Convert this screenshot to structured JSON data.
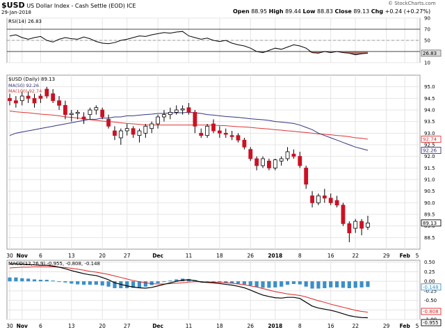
{
  "header": {
    "symbol": "$USD",
    "name": "US Dollar Index - Cash Settle (EOD) ICE",
    "date": "29-Jan-2018",
    "open_label": "Open",
    "open": "88.95",
    "high_label": "High",
    "high": "89.44",
    "low_label": "Low",
    "low": "88.83",
    "close_label": "Close",
    "close": "89.13",
    "chg_label": "Chg",
    "chg": "+0.24 (+0.27%)",
    "credit": "© StockCharts.com"
  },
  "colors": {
    "up": "#ffffff",
    "down": "#cc1122",
    "ma50": "#33337f",
    "ma100": "#dd3333",
    "macd": "#000000",
    "signal": "#dd2222",
    "hist": "#3b8fc7",
    "rsi_fill": "#a05a50"
  },
  "chart_data": [
    {
      "type": "line",
      "panel": "RSI",
      "title": "RSI(14) 26.83",
      "last_label": "26.83",
      "ylim": [
        10,
        90
      ],
      "ticks": [
        10,
        30,
        50,
        70,
        90
      ],
      "reference_lines": [
        30,
        50,
        70
      ],
      "values": [
        58,
        60,
        55,
        52,
        55,
        57,
        50,
        47,
        52,
        55,
        53,
        52,
        56,
        53,
        48,
        45,
        44,
        46,
        50,
        52,
        55,
        58,
        57,
        60,
        62,
        64,
        63,
        65,
        66,
        58,
        55,
        52,
        54,
        50,
        48,
        50,
        45,
        42,
        40,
        36,
        30,
        28,
        32,
        36,
        34,
        38,
        42,
        40,
        36,
        28,
        27,
        30,
        28,
        30,
        28,
        27,
        24,
        26,
        27
      ]
    },
    {
      "type": "candlestick",
      "panel": "Price",
      "title": "$USD (Daily) 89.13",
      "legend": [
        {
          "name": "MA(50) 92.26",
          "color": "#33337f"
        },
        {
          "name": "MA(100) 92.74",
          "color": "#dd3333"
        }
      ],
      "ylim": [
        88.0,
        95.5
      ],
      "ticks": [
        88.5,
        89.0,
        89.5,
        90.0,
        90.5,
        91.0,
        91.5,
        92.0,
        92.5,
        93.0,
        93.5,
        94.0,
        94.5,
        95.0
      ],
      "last_labels": {
        "ma100": "92.74",
        "ma50": "92.26",
        "close": "89.13"
      },
      "ohlc": [
        [
          94.5,
          94.7,
          94.2,
          94.4
        ],
        [
          94.4,
          94.6,
          94.1,
          94.3
        ],
        [
          94.4,
          94.8,
          94.2,
          94.6
        ],
        [
          94.6,
          94.8,
          94.3,
          94.5
        ],
        [
          94.5,
          94.7,
          94.1,
          94.3
        ],
        [
          94.6,
          94.7,
          94.3,
          94.5
        ],
        [
          94.9,
          95.0,
          94.5,
          94.6
        ],
        [
          94.7,
          94.9,
          94.3,
          94.4
        ],
        [
          94.4,
          94.6,
          94.0,
          94.2
        ],
        [
          94.2,
          94.4,
          93.6,
          93.8
        ],
        [
          93.8,
          94.0,
          93.5,
          93.85
        ],
        [
          93.85,
          94.0,
          93.6,
          93.9
        ],
        [
          93.7,
          93.9,
          93.4,
          93.6
        ],
        [
          93.8,
          94.1,
          93.6,
          94.0
        ],
        [
          94.0,
          94.2,
          93.8,
          94.1
        ],
        [
          94.0,
          94.1,
          93.6,
          93.7
        ],
        [
          93.6,
          93.8,
          93.2,
          93.3
        ],
        [
          93.1,
          93.3,
          92.7,
          92.9
        ],
        [
          92.8,
          93.2,
          92.5,
          93.1
        ],
        [
          93.1,
          93.4,
          92.9,
          93.2
        ],
        [
          93.2,
          93.3,
          92.8,
          92.95
        ],
        [
          92.9,
          93.2,
          92.6,
          93.1
        ],
        [
          93.0,
          93.4,
          92.8,
          93.3
        ],
        [
          93.2,
          93.5,
          93.0,
          93.4
        ],
        [
          93.4,
          93.8,
          93.2,
          93.7
        ],
        [
          93.7,
          94.0,
          93.5,
          93.8
        ],
        [
          93.8,
          94.1,
          93.6,
          93.9
        ],
        [
          93.9,
          94.2,
          93.8,
          94.0
        ],
        [
          94.0,
          94.2,
          93.8,
          94.05
        ],
        [
          94.1,
          94.3,
          93.8,
          93.9
        ],
        [
          93.9,
          94.0,
          93.0,
          93.3
        ],
        [
          93.0,
          93.2,
          92.8,
          92.9
        ],
        [
          92.9,
          93.4,
          92.8,
          93.3
        ],
        [
          93.4,
          93.6,
          93.0,
          93.1
        ],
        [
          93.1,
          93.3,
          92.8,
          93.0
        ],
        [
          93.0,
          93.2,
          92.8,
          92.95
        ],
        [
          92.9,
          93.1,
          92.7,
          92.85
        ],
        [
          92.9,
          93.0,
          92.6,
          92.7
        ],
        [
          92.7,
          92.8,
          92.3,
          92.4
        ],
        [
          92.3,
          92.4,
          91.8,
          91.9
        ],
        [
          91.9,
          92.0,
          91.4,
          91.6
        ],
        [
          91.6,
          92.0,
          91.5,
          91.9
        ],
        [
          91.8,
          91.9,
          91.4,
          91.5
        ],
        [
          91.5,
          91.9,
          91.4,
          91.85
        ],
        [
          91.8,
          92.0,
          91.6,
          91.9
        ],
        [
          91.9,
          92.4,
          91.8,
          92.2
        ],
        [
          92.1,
          92.3,
          91.9,
          92.0
        ],
        [
          92.0,
          92.2,
          91.5,
          91.6
        ],
        [
          91.5,
          91.6,
          90.6,
          90.8
        ],
        [
          90.3,
          90.5,
          89.8,
          90.0
        ],
        [
          90.0,
          90.4,
          89.9,
          90.3
        ],
        [
          90.3,
          90.6,
          90.0,
          90.2
        ],
        [
          90.2,
          90.4,
          89.9,
          90.0
        ],
        [
          90.1,
          90.3,
          89.8,
          89.9
        ],
        [
          89.9,
          90.0,
          89.0,
          89.1
        ],
        [
          89.1,
          89.2,
          88.3,
          88.7
        ],
        [
          88.9,
          89.3,
          88.7,
          89.2
        ],
        [
          89.2,
          89.3,
          88.6,
          88.9
        ],
        [
          88.95,
          89.44,
          88.83,
          89.13
        ]
      ],
      "ma50": [
        92.9,
        93.0,
        93.05,
        93.1,
        93.15,
        93.2,
        93.25,
        93.3,
        93.35,
        93.4,
        93.45,
        93.5,
        93.55,
        93.6,
        93.6,
        93.65,
        93.65,
        93.7,
        93.7,
        93.75,
        93.75,
        93.78,
        93.8,
        93.82,
        93.85,
        93.85,
        93.88,
        93.88,
        93.88,
        93.9,
        93.88,
        93.85,
        93.8,
        93.78,
        93.75,
        93.72,
        93.7,
        93.68,
        93.65,
        93.62,
        93.6,
        93.58,
        93.55,
        93.5,
        93.48,
        93.45,
        93.42,
        93.35,
        93.25,
        93.15,
        93.0,
        92.9,
        92.8,
        92.7,
        92.6,
        92.5,
        92.4,
        92.33,
        92.26
      ],
      "ma100": [
        93.95,
        93.92,
        93.9,
        93.88,
        93.85,
        93.82,
        93.8,
        93.78,
        93.75,
        93.7,
        93.68,
        93.65,
        93.62,
        93.58,
        93.55,
        93.52,
        93.5,
        93.48,
        93.45,
        93.42,
        93.4,
        93.38,
        93.35,
        93.35,
        93.35,
        93.35,
        93.35,
        93.35,
        93.35,
        93.35,
        93.35,
        93.35,
        93.35,
        93.34,
        93.33,
        93.32,
        93.3,
        93.28,
        93.27,
        93.25,
        93.22,
        93.2,
        93.18,
        93.15,
        93.13,
        93.1,
        93.08,
        93.05,
        93.03,
        93.0,
        92.97,
        92.95,
        92.93,
        92.9,
        92.88,
        92.85,
        92.8,
        92.78,
        92.74
      ]
    },
    {
      "type": "line",
      "panel": "MACD",
      "title": "MACD(12,26,9) -0.955, -0.808, -0.148",
      "ylim": [
        -1.0,
        0.55
      ],
      "ticks": [
        -1.0,
        -0.75,
        -0.5,
        -0.25,
        0.0,
        0.25,
        0.5
      ],
      "tick_labels": [
        "-1.00",
        "-0.75",
        "-0.50",
        "-0.25",
        "0.00",
        "0.25",
        "0.50"
      ],
      "last_labels": {
        "hist": "-0.148",
        "signal": "-0.808",
        "macd": "-0.955"
      },
      "macd": [
        0.45,
        0.46,
        0.45,
        0.44,
        0.43,
        0.42,
        0.42,
        0.4,
        0.37,
        0.33,
        0.28,
        0.24,
        0.2,
        0.17,
        0.15,
        0.1,
        0.04,
        -0.04,
        -0.08,
        -0.12,
        -0.15,
        -0.17,
        -0.18,
        -0.16,
        -0.12,
        -0.08,
        -0.04,
        0.0,
        0.03,
        0.04,
        0.02,
        -0.02,
        -0.03,
        -0.04,
        -0.06,
        -0.08,
        -0.1,
        -0.13,
        -0.17,
        -0.23,
        -0.3,
        -0.36,
        -0.4,
        -0.43,
        -0.44,
        -0.42,
        -0.42,
        -0.45,
        -0.55,
        -0.65,
        -0.7,
        -0.73,
        -0.76,
        -0.8,
        -0.85,
        -0.9,
        -0.93,
        -0.95,
        -0.955
      ],
      "signal": [
        0.35,
        0.36,
        0.37,
        0.37,
        0.38,
        0.38,
        0.38,
        0.38,
        0.37,
        0.36,
        0.34,
        0.32,
        0.29,
        0.26,
        0.24,
        0.21,
        0.18,
        0.14,
        0.1,
        0.06,
        0.02,
        -0.01,
        -0.04,
        -0.06,
        -0.07,
        -0.07,
        -0.06,
        -0.05,
        -0.04,
        -0.02,
        -0.01,
        -0.01,
        -0.02,
        -0.02,
        -0.03,
        -0.04,
        -0.05,
        -0.07,
        -0.09,
        -0.12,
        -0.15,
        -0.19,
        -0.23,
        -0.27,
        -0.3,
        -0.33,
        -0.35,
        -0.37,
        -0.41,
        -0.46,
        -0.51,
        -0.55,
        -0.6,
        -0.64,
        -0.68,
        -0.72,
        -0.76,
        -0.79,
        -0.808
      ],
      "hist": [
        0.1,
        0.1,
        0.08,
        0.07,
        0.05,
        0.04,
        0.04,
        0.02,
        0.0,
        -0.03,
        -0.06,
        -0.08,
        -0.09,
        -0.09,
        -0.09,
        -0.11,
        -0.14,
        -0.18,
        -0.18,
        -0.18,
        -0.17,
        -0.16,
        -0.14,
        -0.1,
        -0.05,
        -0.01,
        0.02,
        0.05,
        0.07,
        0.06,
        0.03,
        -0.01,
        -0.01,
        -0.02,
        -0.03,
        -0.04,
        -0.05,
        -0.06,
        -0.08,
        -0.11,
        -0.15,
        -0.17,
        -0.17,
        -0.16,
        -0.14,
        -0.09,
        -0.07,
        -0.08,
        -0.14,
        -0.19,
        -0.19,
        -0.18,
        -0.16,
        -0.16,
        -0.17,
        -0.18,
        -0.17,
        -0.16,
        -0.148
      ]
    }
  ],
  "x_axis": [
    {
      "label": "30",
      "index": 0,
      "bold": false
    },
    {
      "label": "Nov",
      "index": 2,
      "bold": true
    },
    {
      "label": "6",
      "index": 5,
      "bold": false
    },
    {
      "label": "13",
      "index": 10,
      "bold": false
    },
    {
      "label": "20",
      "index": 15,
      "bold": false
    },
    {
      "label": "27",
      "index": 19,
      "bold": false
    },
    {
      "label": "Dec",
      "index": 24,
      "bold": true
    },
    {
      "label": "11",
      "index": 29,
      "bold": false
    },
    {
      "label": "18",
      "index": 34,
      "bold": false
    },
    {
      "label": "26",
      "index": 39,
      "bold": false
    },
    {
      "label": "2018",
      "index": 43,
      "bold": true
    },
    {
      "label": "8",
      "index": 47,
      "bold": false
    },
    {
      "label": "16",
      "index": 52,
      "bold": false
    },
    {
      "label": "22",
      "index": 56,
      "bold": false
    },
    {
      "label": "29",
      "index": 61,
      "bold": false
    },
    {
      "label": "Feb",
      "index": 64,
      "bold": true
    },
    {
      "label": "5",
      "index": 66,
      "bold": false
    }
  ]
}
